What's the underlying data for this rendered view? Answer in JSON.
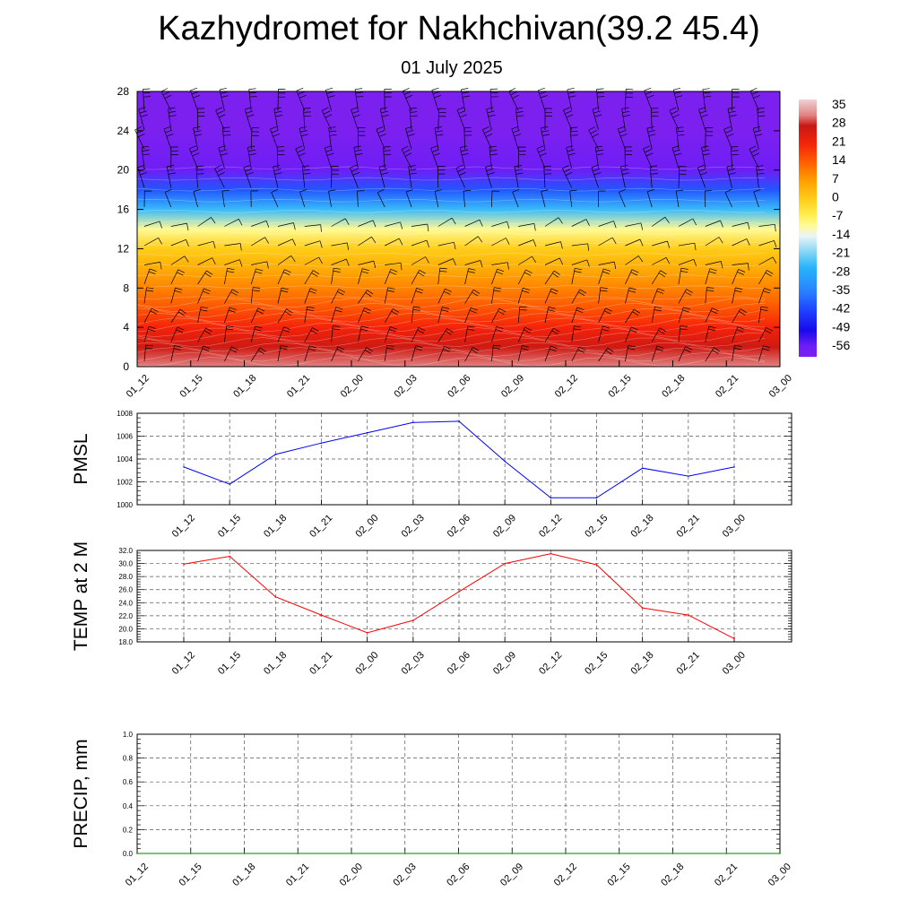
{
  "title": "Kazhydromet for Nakhchivan(39.2 45.4)",
  "subtitle": "01 July 2025",
  "time_labels": [
    "01_12",
    "01_15",
    "01_18",
    "01_21",
    "02_00",
    "02_03",
    "02_06",
    "02_09",
    "02_12",
    "02_15",
    "02_18",
    "02_21",
    "03_00"
  ],
  "chart_data": [
    {
      "type": "heatmap",
      "title": "",
      "ylabel": "",
      "ylim": [
        0,
        28
      ],
      "yticks": [
        "0",
        "4",
        "8",
        "12",
        "16",
        "20",
        "24",
        "28"
      ],
      "categories": [
        "01_12",
        "01_15",
        "01_18",
        "01_21",
        "02_00",
        "02_03",
        "02_06",
        "02_09",
        "02_12",
        "02_15",
        "02_18",
        "02_21",
        "03_00"
      ],
      "levels": [
        0,
        2,
        4,
        6,
        8,
        10,
        12,
        14,
        16,
        18,
        20,
        22,
        24,
        26,
        28
      ],
      "temperature_profile": [
        32,
        27,
        21,
        15,
        10,
        5,
        0,
        -10,
        -25,
        -40,
        -56,
        -58,
        -60,
        -60,
        -60
      ],
      "colorbar": {
        "labels": [
          "35",
          "28",
          "21",
          "14",
          "7",
          "0",
          "-7",
          "-14",
          "-21",
          "-28",
          "-35",
          "-42",
          "-49",
          "-56"
        ],
        "range": [
          -60,
          38
        ]
      },
      "wind_barbs": true
    },
    {
      "type": "line",
      "title": "",
      "ylabel": "PMSL",
      "ylim": [
        1000,
        1008
      ],
      "yticks": [
        "1000",
        "1002",
        "1004",
        "1006",
        "1008"
      ],
      "categories": [
        "01_12",
        "01_15",
        "01_18",
        "01_21",
        "02_00",
        "02_03",
        "02_06",
        "02_09",
        "02_12",
        "02_15",
        "02_18",
        "02_21",
        "03_00"
      ],
      "values": [
        1003.3,
        1001.8,
        1004.4,
        1005.4,
        1006.3,
        1007.2,
        1007.3,
        1003.8,
        1000.6,
        1000.6,
        1003.2,
        1002.5,
        1003.3
      ],
      "color": "#0000ff",
      "grid": true
    },
    {
      "type": "line",
      "title": "",
      "ylabel": "TEMP at 2 M",
      "ylim": [
        18,
        32
      ],
      "yticks": [
        "18.0",
        "20.0",
        "22.0",
        "24.0",
        "26.0",
        "28.0",
        "30.0",
        "32.0"
      ],
      "categories": [
        "01_12",
        "01_15",
        "01_18",
        "01_21",
        "02_00",
        "02_03",
        "02_06",
        "02_09",
        "02_12",
        "02_15",
        "02_18",
        "02_21",
        "03_00"
      ],
      "values": [
        29.9,
        31.1,
        24.9,
        22.1,
        19.4,
        21.3,
        25.7,
        30.0,
        31.5,
        29.8,
        23.2,
        22.1,
        18.5
      ],
      "color": "#ff0000",
      "grid": true
    },
    {
      "type": "line",
      "title": "",
      "ylabel": "PRECIP, mm",
      "ylim": [
        0,
        1
      ],
      "yticks": [
        "0.0",
        "0.2",
        "0.4",
        "0.6",
        "0.8",
        "1.0"
      ],
      "categories": [
        "01_12",
        "01_15",
        "01_18",
        "01_21",
        "02_00",
        "02_03",
        "02_06",
        "02_09",
        "02_12",
        "02_15",
        "02_18",
        "02_21",
        "03_00"
      ],
      "values": [
        0,
        0,
        0,
        0,
        0,
        0,
        0,
        0,
        0,
        0,
        0,
        0,
        0
      ],
      "color": "#008000",
      "grid": true
    }
  ]
}
